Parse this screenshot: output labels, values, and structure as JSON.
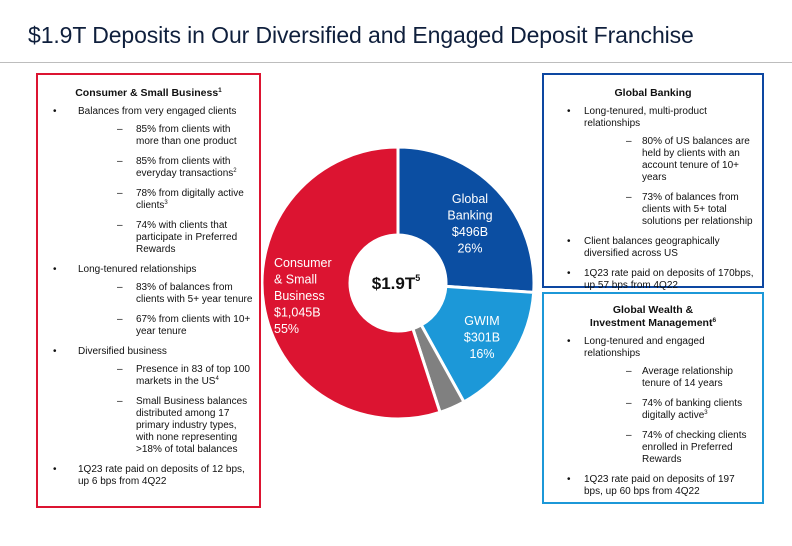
{
  "title": "$1.9T Deposits in Our Diversified and Engaged Deposit Franchise",
  "chart_data": {
    "type": "pie",
    "donut": true,
    "center_label": "$1.9T",
    "center_label_sup": "5",
    "total": 1.9,
    "unit": "$T",
    "slices": [
      {
        "name": "Global Banking",
        "label_lines": [
          "Global",
          "Banking",
          "$496B",
          "26%"
        ],
        "value": 496,
        "percent": 26,
        "color": "#0b4ea2"
      },
      {
        "name": "GWIM",
        "label_lines": [
          "GWIM",
          "$301B",
          "16%"
        ],
        "value": 301,
        "percent": 16,
        "color": "#1c98d8"
      },
      {
        "name": "Other",
        "label_lines": [],
        "value": 58,
        "percent": 3,
        "color": "#808080"
      },
      {
        "name": "Consumer & Small Business",
        "label_lines": [
          "Consumer",
          "& Small",
          "Business",
          "$1,045B",
          "55%"
        ],
        "value": 1045,
        "percent": 55,
        "color": "#dc1431"
      }
    ]
  },
  "consumer": {
    "title": "Consumer & Small Business",
    "title_sup": "1",
    "b1": "Balances from very engaged clients",
    "b1_s1": "85% from clients with more than one product",
    "b1_s2": "85% from clients with everyday transactions",
    "b1_s2_sup": "2",
    "b1_s3": "78% from digitally active clients",
    "b1_s3_sup": "3",
    "b1_s4": "74% with clients that participate in Preferred Rewards",
    "b2": "Long-tenured relationships",
    "b2_s1": "83% of balances from clients with 5+ year tenure",
    "b2_s2": "67% from clients with 10+ year tenure",
    "b3": "Diversified business",
    "b3_s1": "Presence in 83 of top 100 markets in the US",
    "b3_s1_sup": "4",
    "b3_s2": "Small Business balances distributed among 17 primary industry types, with none representing >18% of total balances",
    "b4": "1Q23 rate paid on deposits of 12 bps, up 6 bps from 4Q22"
  },
  "global_banking": {
    "title": "Global Banking",
    "b1": "Long-tenured, multi-product relationships",
    "b1_s1": "80% of US balances are held by clients with an account tenure of 10+ years",
    "b1_s2": "73% of balances from clients with 5+ total solutions per relationship",
    "b2": "Client balances geographically diversified across US",
    "b3": "1Q23 rate paid on deposits of 170bps, up 57 bps from 4Q22"
  },
  "gwim": {
    "title_line1": "Global Wealth &",
    "title_line2": "Investment Management",
    "title_sup": "6",
    "b1": "Long-tenured and engaged relationships",
    "b1_s1": "Average relationship tenure of 14 years",
    "b1_s2": "74% of banking clients digitally active",
    "b1_s2_sup": "3",
    "b1_s3": "74% of checking clients enrolled in Preferred Rewards",
    "b2": "1Q23 rate paid on deposits of 197 bps, up 60 bps from 4Q22"
  }
}
